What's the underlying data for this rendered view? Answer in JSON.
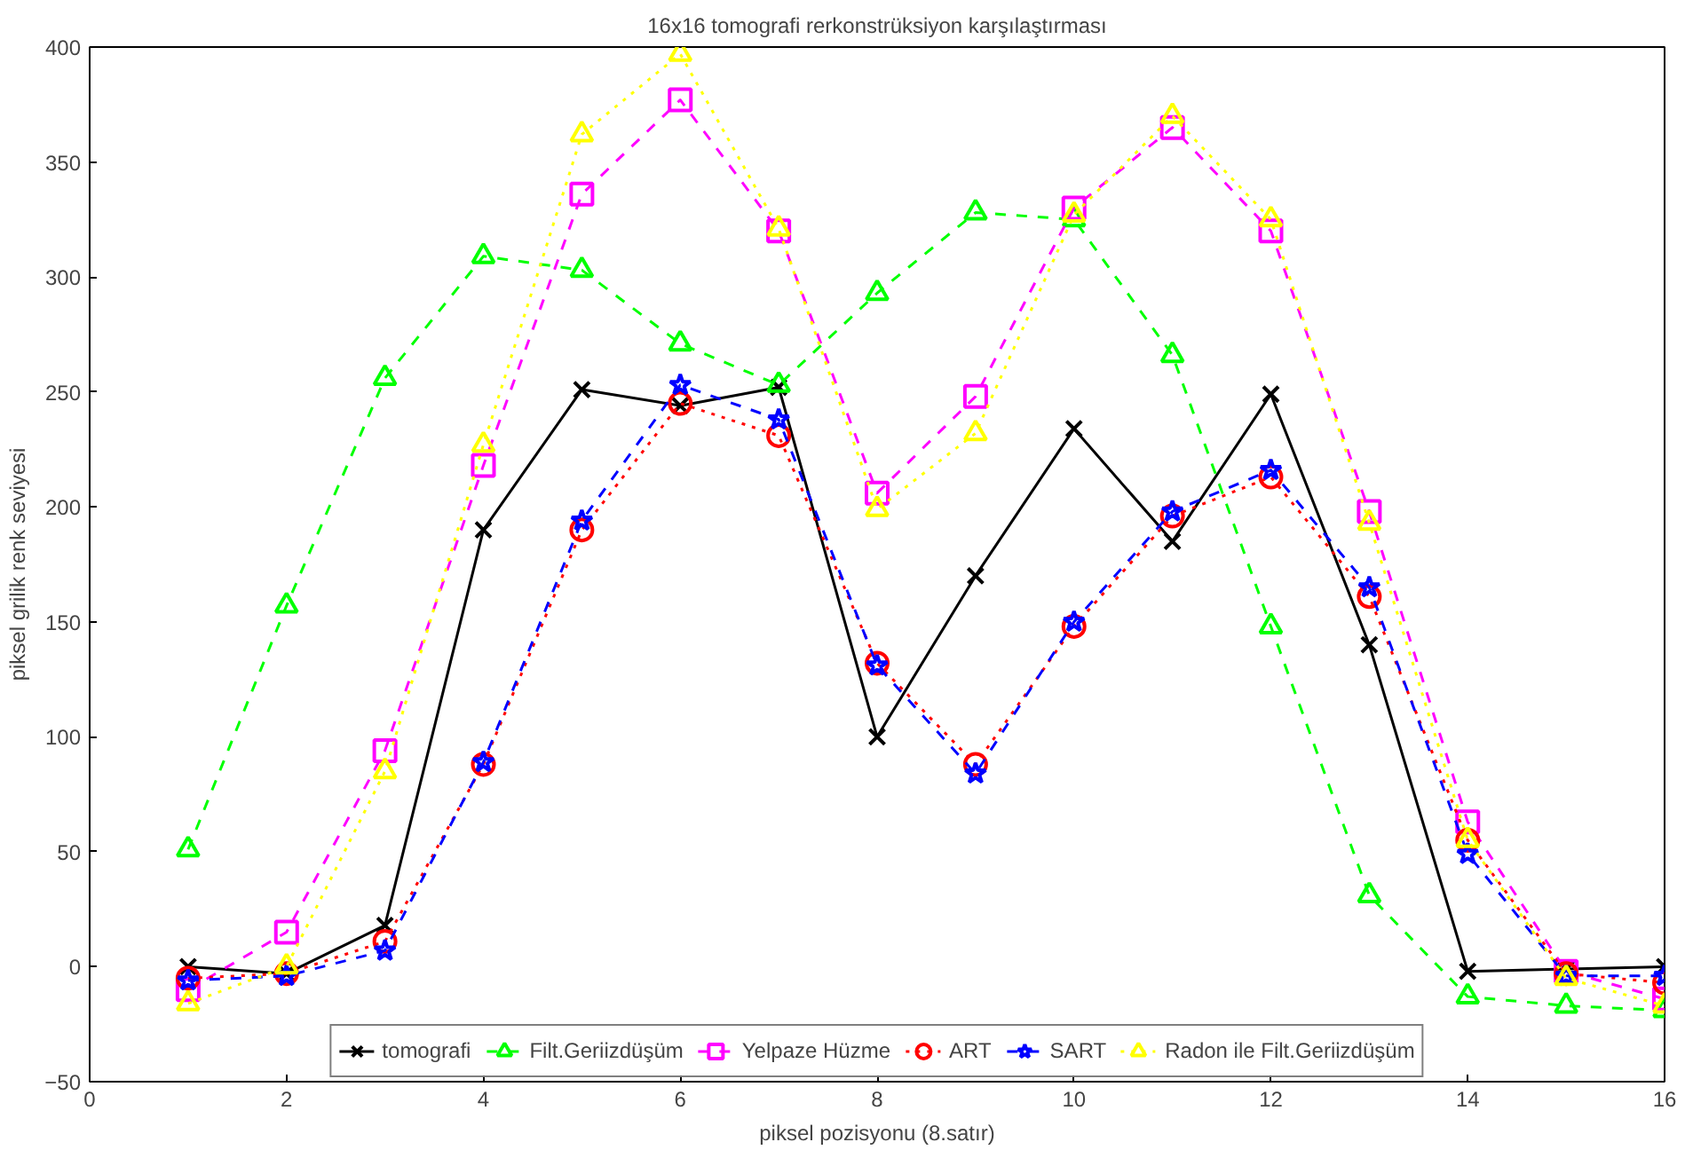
{
  "chart_data": {
    "type": "line",
    "title": "16x16 tomografi rerkonstrüksiyon karşılaştırması",
    "xlabel": "piksel pozisyonu (8.satır)",
    "ylabel": "piksel grilik renk seviyesi",
    "x": [
      1,
      2,
      3,
      4,
      5,
      6,
      7,
      8,
      9,
      10,
      11,
      12,
      13,
      14,
      15,
      16
    ],
    "xlim": [
      0,
      16
    ],
    "xticks": [
      0,
      2,
      4,
      6,
      8,
      10,
      12,
      14,
      16
    ],
    "ylim": [
      -50,
      400
    ],
    "yticks": [
      -50,
      0,
      50,
      100,
      150,
      200,
      250,
      300,
      350,
      400
    ],
    "grid": false,
    "legend": "bottom",
    "series": [
      {
        "name": "tomografi",
        "color": "#000000",
        "marker": "cross",
        "line_style": "solid",
        "values": [
          0,
          -3,
          18,
          190,
          251,
          244,
          252,
          100,
          170,
          234,
          185,
          249,
          140,
          -2,
          -1,
          0
        ]
      },
      {
        "name": "Filt.Geriizdüşüm",
        "color": "#00ff00",
        "marker": "triangle",
        "line_style": "dashed",
        "values": [
          51,
          157,
          256,
          309,
          303,
          271,
          253,
          293,
          328,
          325,
          266,
          148,
          31,
          -13,
          -17,
          -19
        ]
      },
      {
        "name": "Yelpaze Hüzme",
        "color": "#ff00ff",
        "marker": "square",
        "line_style": "dashed",
        "values": [
          -10,
          15,
          94,
          218,
          336,
          377,
          320,
          206,
          248,
          330,
          365,
          320,
          198,
          63,
          -2,
          -14
        ]
      },
      {
        "name": "ART",
        "color": "#ff0000",
        "marker": "circle",
        "line_style": "dotted",
        "values": [
          -5,
          -3,
          11,
          88,
          190,
          245,
          231,
          132,
          88,
          148,
          196,
          213,
          161,
          55,
          -3,
          -7
        ]
      },
      {
        "name": "SART",
        "color": "#0000ff",
        "marker": "star",
        "line_style": "dashed",
        "values": [
          -6,
          -4,
          7,
          89,
          194,
          253,
          238,
          131,
          84,
          150,
          198,
          216,
          165,
          49,
          -4,
          -4
        ]
      },
      {
        "name": "Radon ile Filt.Geriizdüşüm",
        "color": "#ffff00",
        "marker": "triangle",
        "line_style": "dotted",
        "values": [
          -16,
          0,
          85,
          227,
          362,
          397,
          321,
          199,
          232,
          327,
          370,
          325,
          193,
          55,
          -5,
          -17
        ]
      }
    ]
  }
}
